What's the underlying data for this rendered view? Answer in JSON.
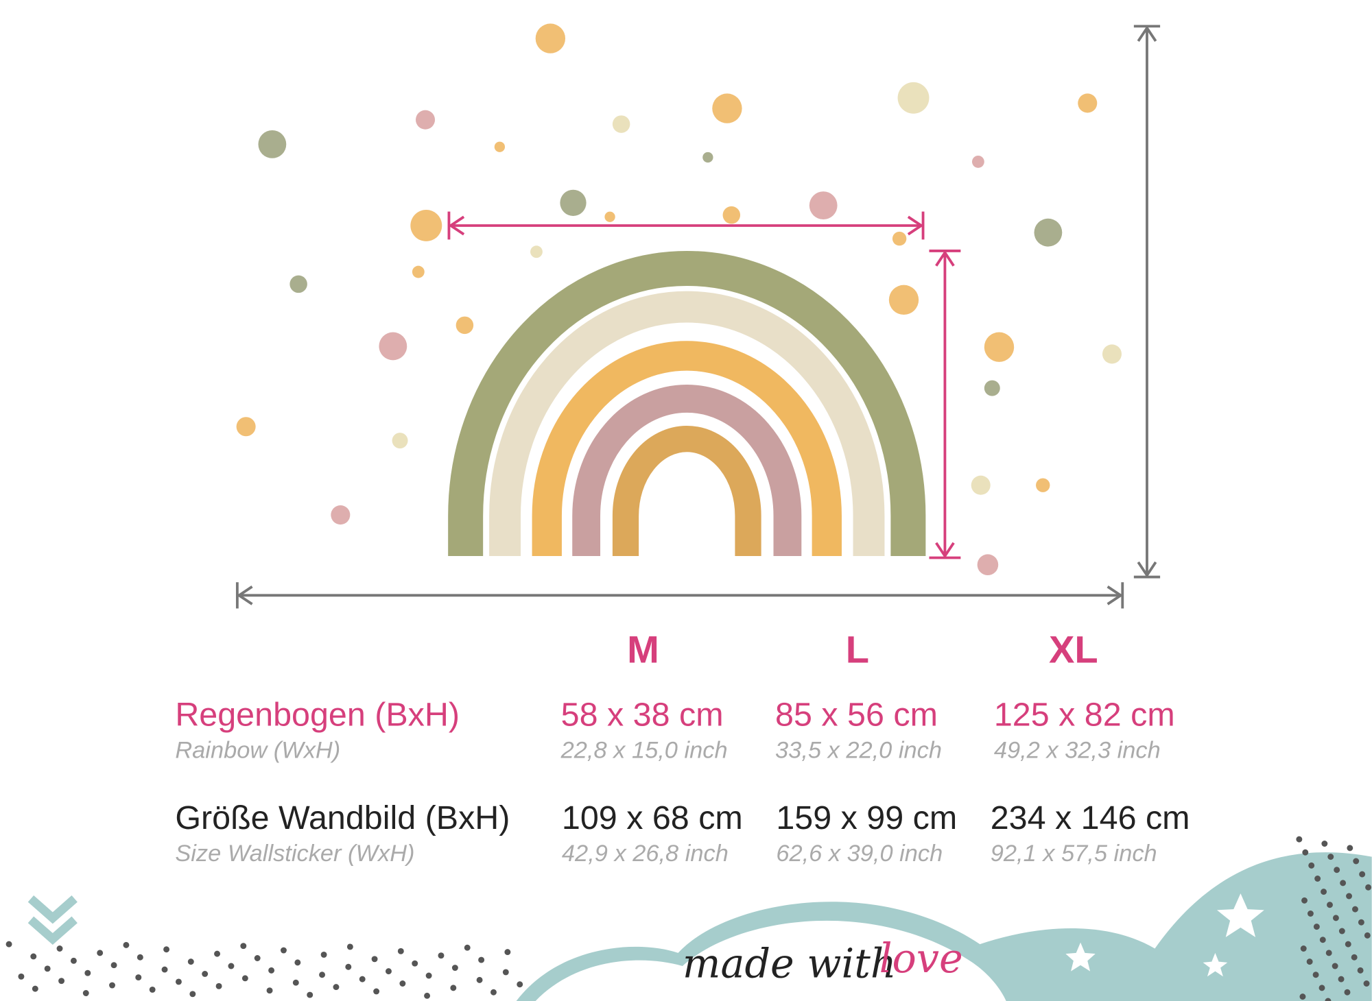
{
  "sizes": [
    "M",
    "L",
    "XL"
  ],
  "rows": [
    {
      "label": "Regenbogen (BxH)",
      "sublabel": "Rainbow (WxH)",
      "cm": [
        "58 x 38 cm",
        "85 x 56 cm",
        "125 x 82 cm"
      ],
      "inch": [
        "22,8 x 15,0 inch",
        "33,5 x 22,0 inch",
        "49,2 x 32,3 inch"
      ]
    },
    {
      "label": "Größe Wandbild (BxH)",
      "sublabel": "Size Wallsticker (WxH)",
      "cm": [
        "109 x 68 cm",
        "159 x 99 cm",
        "234 x 146 cm"
      ],
      "inch": [
        "42,9 x 26,8 inch",
        "62,6 x 39,0 inch",
        "92,1 x 57,5 inch"
      ]
    }
  ],
  "footer": {
    "text": "made with",
    "highlight": "love"
  }
}
